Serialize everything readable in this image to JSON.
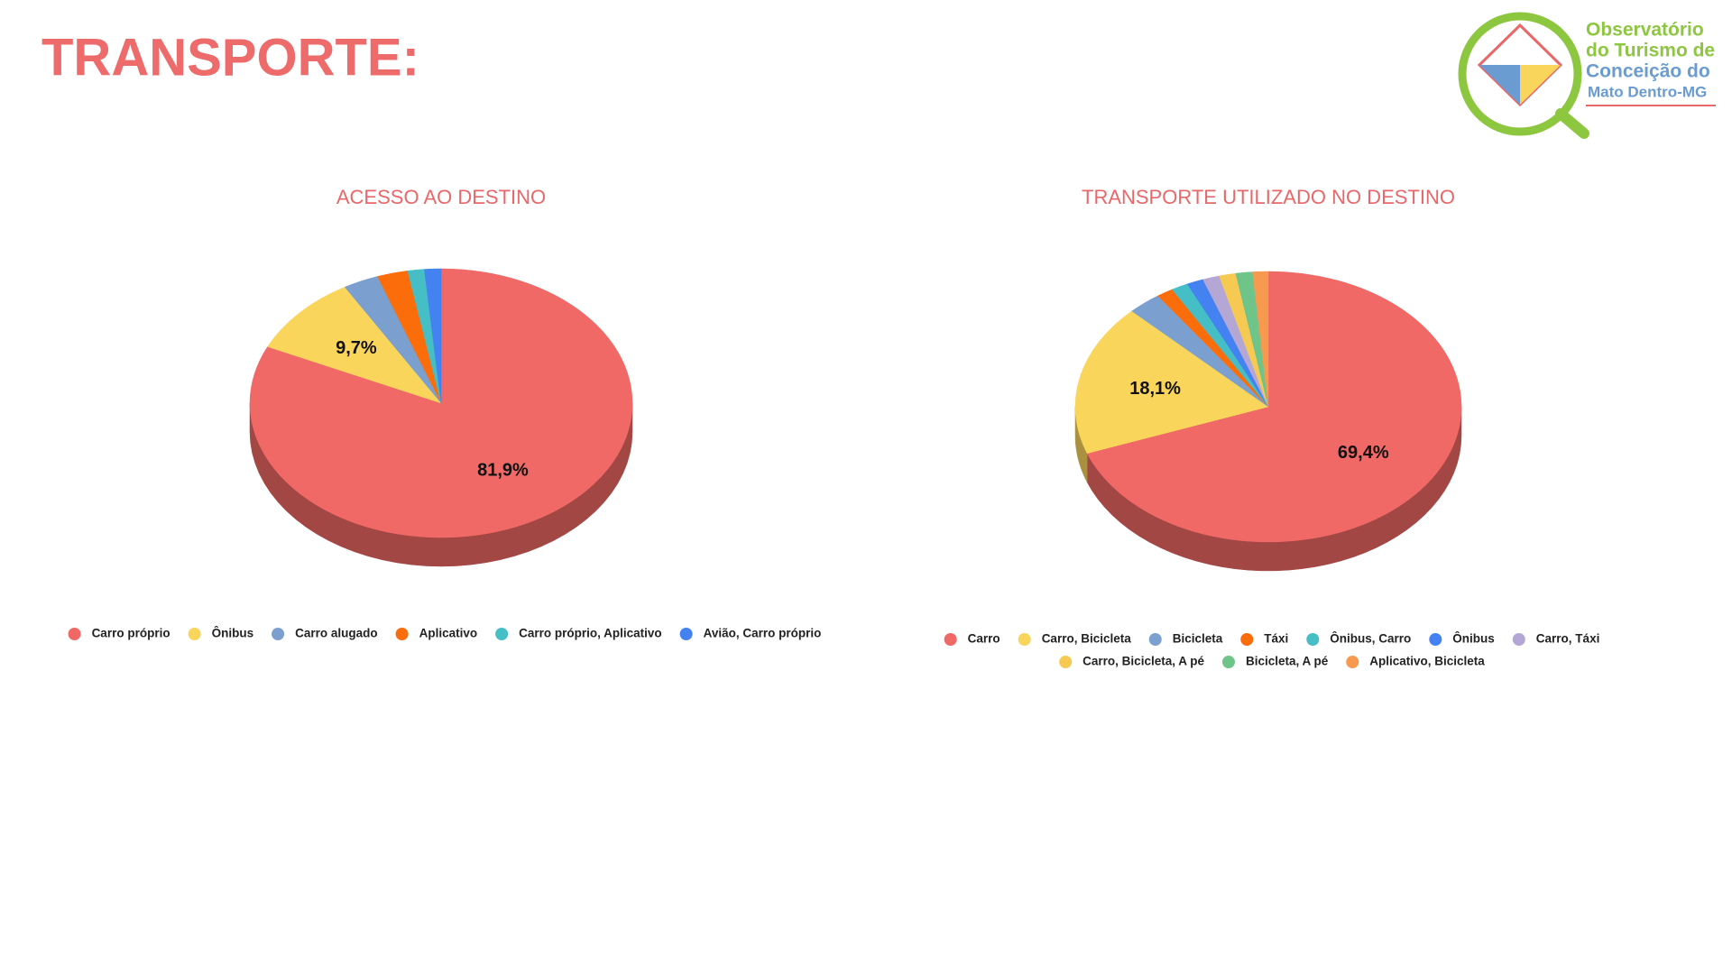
{
  "page": {
    "title": "TRANSPORTE:",
    "logo_lines": [
      "Observatório",
      "do Turismo de",
      "Conceição do",
      "Mato Dentro-MG"
    ]
  },
  "chart_data": [
    {
      "type": "pie",
      "title": "ACESSO AO DESTINO",
      "categories": [
        "Carro próprio",
        "Ônibus",
        "Carro alugado",
        "Aplicativo",
        "Carro próprio, Aplicativo",
        "Avião, Carro próprio"
      ],
      "values": [
        81.9,
        9.7,
        3.0,
        2.6,
        1.4,
        1.4
      ],
      "value_labels": [
        "81,9%",
        "9,7%",
        null,
        null,
        null,
        null
      ],
      "colors": [
        "#f06966",
        "#fad55c",
        "#7ba0cf",
        "#fa6d0a",
        "#45bec5",
        "#4382f0"
      ]
    },
    {
      "type": "pie",
      "title": "TRANSPORTE UTILIZADO NO DESTINO",
      "categories": [
        "Carro",
        "Carro, Bicicleta",
        "Bicicleta",
        "Táxi",
        "Ônibus, Carro",
        "Ônibus",
        "Carro, Táxi",
        "Carro, Bicicleta, A pé",
        "Bicicleta, A pé",
        "Aplicativo, Bicicleta"
      ],
      "values": [
        69.4,
        18.1,
        2.8,
        1.4,
        1.4,
        1.4,
        1.4,
        1.4,
        1.4,
        1.3
      ],
      "value_labels": [
        "69,4%",
        "18,1%",
        null,
        null,
        null,
        null,
        null,
        null,
        null,
        null
      ],
      "colors": [
        "#f06966",
        "#fad55c",
        "#7ba0cf",
        "#fa6d0a",
        "#45bec5",
        "#4382f0",
        "#b4a7d6",
        "#f6ca52",
        "#6fc48a",
        "#f7994f"
      ]
    }
  ]
}
